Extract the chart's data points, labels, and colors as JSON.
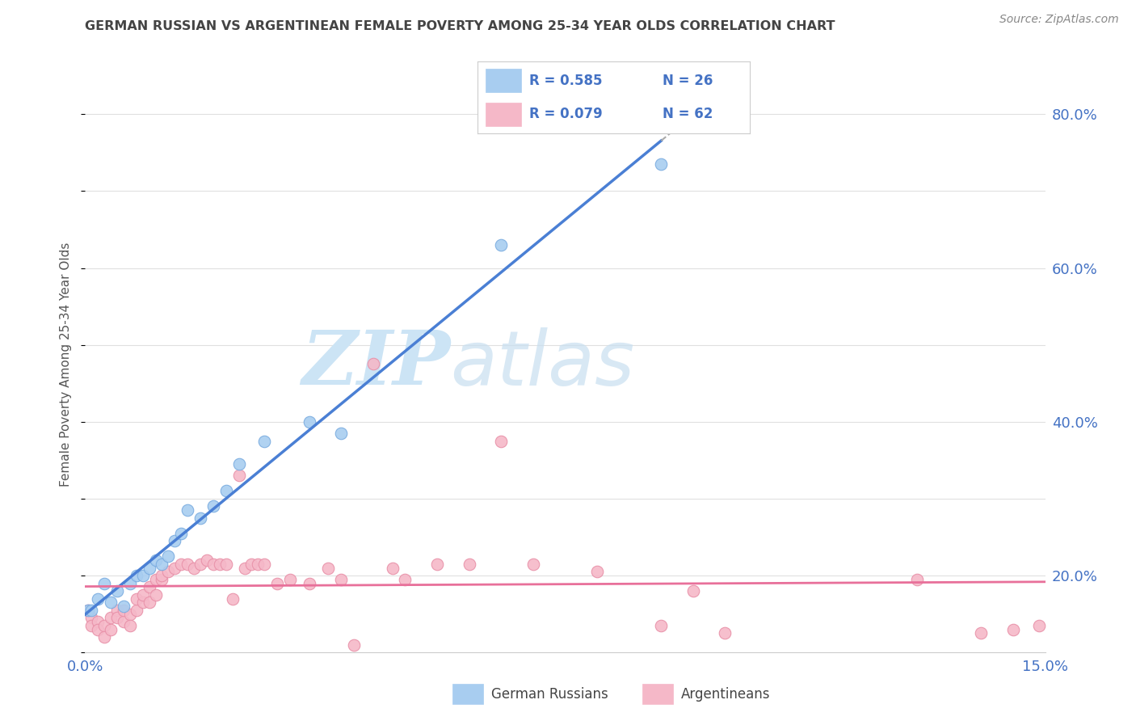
{
  "title": "GERMAN RUSSIAN VS ARGENTINEAN FEMALE POVERTY AMONG 25-34 YEAR OLDS CORRELATION CHART",
  "source": "Source: ZipAtlas.com",
  "ylabel": "Female Poverty Among 25-34 Year Olds",
  "xmin": 0.0,
  "xmax": 0.15,
  "ymin": 0.1,
  "ymax": 0.85,
  "right_yticks": [
    0.2,
    0.4,
    0.6,
    0.8
  ],
  "right_yticklabels": [
    "20.0%",
    "40.0%",
    "60.0%",
    "80.0%"
  ],
  "xticks": [
    0.0,
    0.15
  ],
  "xticklabels": [
    "0.0%",
    "15.0%"
  ],
  "background_color": "#ffffff",
  "watermark_zip": "ZIP",
  "watermark_atlas": "atlas",
  "watermark_color": "#cce4f5",
  "blue_color": "#a8cdf0",
  "blue_edge": "#7aace0",
  "pink_color": "#f5b8c8",
  "pink_edge": "#e890a8",
  "blue_line_color": "#4a7fd4",
  "pink_line_color": "#e8709a",
  "dashed_color": "#aaaaaa",
  "title_color": "#444444",
  "source_color": "#888888",
  "tick_color": "#4472c4",
  "grid_color": "#e0e0e0",
  "legend_text_color": "#4472c4",
  "german_russian_x": [
    0.0005,
    0.001,
    0.002,
    0.003,
    0.004,
    0.005,
    0.006,
    0.007,
    0.008,
    0.009,
    0.01,
    0.011,
    0.012,
    0.013,
    0.014,
    0.015,
    0.016,
    0.018,
    0.02,
    0.022,
    0.024,
    0.028,
    0.035,
    0.04,
    0.065,
    0.09
  ],
  "german_russian_y": [
    0.155,
    0.155,
    0.17,
    0.19,
    0.165,
    0.18,
    0.16,
    0.19,
    0.2,
    0.2,
    0.21,
    0.22,
    0.215,
    0.225,
    0.245,
    0.255,
    0.285,
    0.275,
    0.29,
    0.31,
    0.345,
    0.375,
    0.4,
    0.385,
    0.63,
    0.735
  ],
  "argentinean_x": [
    0.0005,
    0.001,
    0.001,
    0.002,
    0.002,
    0.003,
    0.003,
    0.004,
    0.004,
    0.005,
    0.005,
    0.006,
    0.006,
    0.007,
    0.007,
    0.008,
    0.008,
    0.009,
    0.009,
    0.01,
    0.01,
    0.011,
    0.011,
    0.012,
    0.012,
    0.013,
    0.014,
    0.015,
    0.016,
    0.017,
    0.018,
    0.019,
    0.02,
    0.021,
    0.022,
    0.023,
    0.024,
    0.025,
    0.026,
    0.027,
    0.028,
    0.03,
    0.032,
    0.035,
    0.038,
    0.04,
    0.042,
    0.045,
    0.048,
    0.05,
    0.055,
    0.06,
    0.065,
    0.07,
    0.08,
    0.09,
    0.095,
    0.1,
    0.13,
    0.14,
    0.145,
    0.149
  ],
  "argentinean_y": [
    0.155,
    0.145,
    0.135,
    0.14,
    0.13,
    0.135,
    0.12,
    0.13,
    0.145,
    0.155,
    0.145,
    0.14,
    0.155,
    0.15,
    0.135,
    0.155,
    0.17,
    0.165,
    0.175,
    0.185,
    0.165,
    0.175,
    0.195,
    0.195,
    0.2,
    0.205,
    0.21,
    0.215,
    0.215,
    0.21,
    0.215,
    0.22,
    0.215,
    0.215,
    0.215,
    0.17,
    0.33,
    0.21,
    0.215,
    0.215,
    0.215,
    0.19,
    0.195,
    0.19,
    0.21,
    0.195,
    0.11,
    0.475,
    0.21,
    0.195,
    0.215,
    0.215,
    0.375,
    0.215,
    0.205,
    0.135,
    0.18,
    0.125,
    0.195,
    0.125,
    0.13,
    0.135
  ]
}
